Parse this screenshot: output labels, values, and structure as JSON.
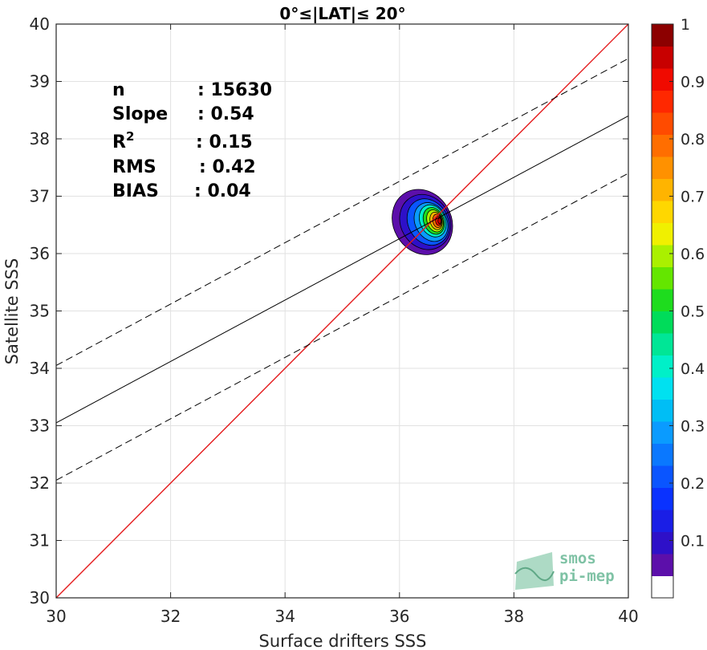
{
  "chart_data": {
    "type": "scatter",
    "title": "0°≤|LAT|≤ 20°",
    "xlabel": "Surface drifters SSS",
    "ylabel": "Satellite SSS",
    "xlim": [
      30,
      40
    ],
    "ylim": [
      30,
      40
    ],
    "xticks": [
      30,
      32,
      34,
      36,
      38,
      40
    ],
    "yticks": [
      30,
      31,
      32,
      33,
      34,
      35,
      36,
      37,
      38,
      39,
      40
    ],
    "grid": true,
    "stats": [
      {
        "label": "n",
        "value": ": 15630"
      },
      {
        "label": "Slope",
        "value": ": 0.54"
      },
      {
        "label": "R",
        "sup": "2",
        "value": ": 0.15"
      },
      {
        "label": "RMS",
        "value": ": 0.42"
      },
      {
        "label": "BIAS",
        "value": ": 0.04"
      }
    ],
    "lines": [
      {
        "kind": "identity",
        "color": "#e41a1c",
        "style": "solid",
        "x": [
          30,
          40
        ],
        "y": [
          30,
          40
        ]
      },
      {
        "kind": "regression",
        "color": "#000000",
        "style": "solid",
        "x": [
          30,
          40
        ],
        "y": [
          33.05,
          38.4
        ]
      },
      {
        "kind": "upper-bound",
        "color": "#000000",
        "style": "dashed",
        "x": [
          30,
          40
        ],
        "y": [
          34.05,
          39.4
        ]
      },
      {
        "kind": "lower-bound",
        "color": "#000000",
        "style": "dashed",
        "x": [
          30,
          40
        ],
        "y": [
          32.05,
          37.4
        ]
      }
    ],
    "density_contours": [
      {
        "level": 0.05,
        "cx": 36.4,
        "cy": 36.55,
        "rx": 0.92,
        "ry": 0.95,
        "rot": -30
      },
      {
        "level": 0.1,
        "cx": 36.45,
        "cy": 36.55,
        "rx": 0.78,
        "ry": 0.8,
        "rot": -30
      },
      {
        "level": 0.2,
        "cx": 36.5,
        "cy": 36.55,
        "rx": 0.63,
        "ry": 0.68,
        "rot": -30
      },
      {
        "level": 0.3,
        "cx": 36.55,
        "cy": 36.55,
        "rx": 0.5,
        "ry": 0.57,
        "rot": -28
      },
      {
        "level": 0.4,
        "cx": 36.58,
        "cy": 36.57,
        "rx": 0.4,
        "ry": 0.47,
        "rot": -25
      },
      {
        "level": 0.5,
        "cx": 36.6,
        "cy": 36.57,
        "rx": 0.32,
        "ry": 0.39,
        "rot": -22
      },
      {
        "level": 0.6,
        "cx": 36.62,
        "cy": 36.57,
        "rx": 0.25,
        "ry": 0.32,
        "rot": -20
      },
      {
        "level": 0.7,
        "cx": 36.64,
        "cy": 36.57,
        "rx": 0.19,
        "ry": 0.25,
        "rot": -15
      },
      {
        "level": 0.8,
        "cx": 36.66,
        "cy": 36.57,
        "rx": 0.14,
        "ry": 0.19,
        "rot": -10
      },
      {
        "level": 0.9,
        "cx": 36.68,
        "cy": 36.57,
        "rx": 0.09,
        "ry": 0.13,
        "rot": -5
      },
      {
        "level": 0.95,
        "cx": 36.7,
        "cy": 36.57,
        "rx": 0.05,
        "ry": 0.08,
        "rot": 0
      }
    ],
    "colorbar": {
      "min": 0,
      "max": 1,
      "ticks": [
        0.1,
        0.2,
        0.3,
        0.4,
        0.5,
        0.6,
        0.7,
        0.8,
        0.9,
        1
      ],
      "colors": [
        "#ffffff",
        "#5c0faa",
        "#2e10c8",
        "#1a1ee6",
        "#0a32ff",
        "#0a55ff",
        "#0a78ff",
        "#0a9bff",
        "#00bef5",
        "#00e1f0",
        "#00f0c8",
        "#00e696",
        "#00dc5a",
        "#1edc1e",
        "#64e600",
        "#aaf000",
        "#f0f000",
        "#ffd700",
        "#ffb400",
        "#ff9100",
        "#ff6e00",
        "#ff4b00",
        "#ff2800",
        "#f00a00",
        "#c80000",
        "#8c0000"
      ]
    }
  },
  "watermark": {
    "line1": "smos",
    "line2": "pi-mep"
  }
}
